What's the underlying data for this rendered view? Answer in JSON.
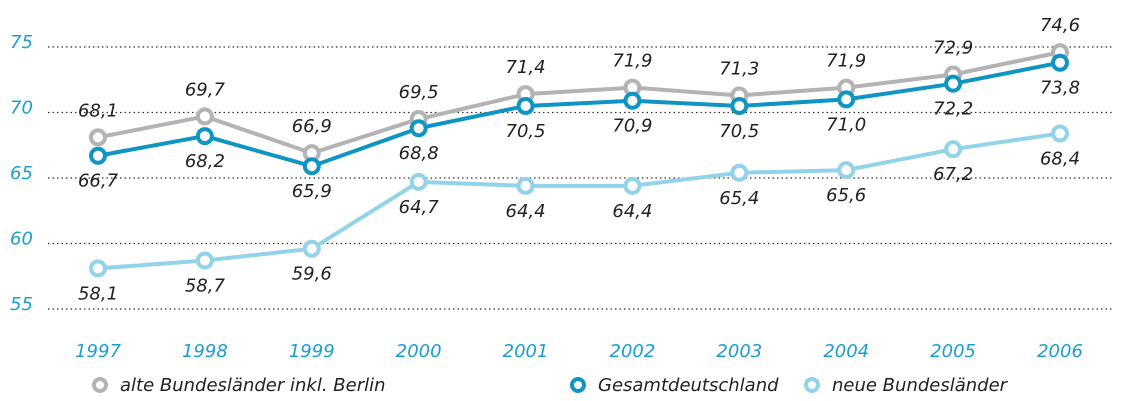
{
  "chart_data": {
    "type": "line",
    "categories": [
      "1997",
      "1998",
      "1999",
      "2000",
      "2001",
      "2002",
      "2003",
      "2004",
      "2005",
      "2006"
    ],
    "series": [
      {
        "name": "alte Bundesländer inkl. Berlin",
        "color": "#b3b3b3",
        "values": [
          68.1,
          69.7,
          66.9,
          69.5,
          71.4,
          71.9,
          71.3,
          71.9,
          72.9,
          74.6
        ],
        "value_labels": [
          "68,1",
          "69,7",
          "66,9",
          "69,5",
          "71,4",
          "71,9",
          "71,3",
          "71,9",
          "72,9",
          "74,6"
        ]
      },
      {
        "name": "Gesamtdeutschland",
        "color": "#0e95c4",
        "values": [
          66.7,
          68.2,
          65.9,
          68.8,
          70.5,
          70.9,
          70.5,
          71.0,
          72.2,
          73.8
        ],
        "value_labels": [
          "66,7",
          "68,2",
          "65,9",
          "68,8",
          "70,5",
          "70,9",
          "70,5",
          "71,0",
          "72,2",
          "73,8"
        ]
      },
      {
        "name": "neue Bundesländer",
        "color": "#93d3ea",
        "values": [
          58.1,
          58.7,
          59.6,
          64.7,
          64.4,
          64.4,
          65.4,
          65.6,
          67.2,
          68.4
        ],
        "value_labels": [
          "58,1",
          "58,7",
          "59,6",
          "64,7",
          "64,4",
          "64,4",
          "65,4",
          "65,6",
          "67,2",
          "68,4"
        ]
      }
    ],
    "ylim": [
      55,
      75
    ],
    "yticks": [
      55,
      60,
      65,
      70,
      75
    ],
    "grid": true,
    "legend": "bottom"
  }
}
